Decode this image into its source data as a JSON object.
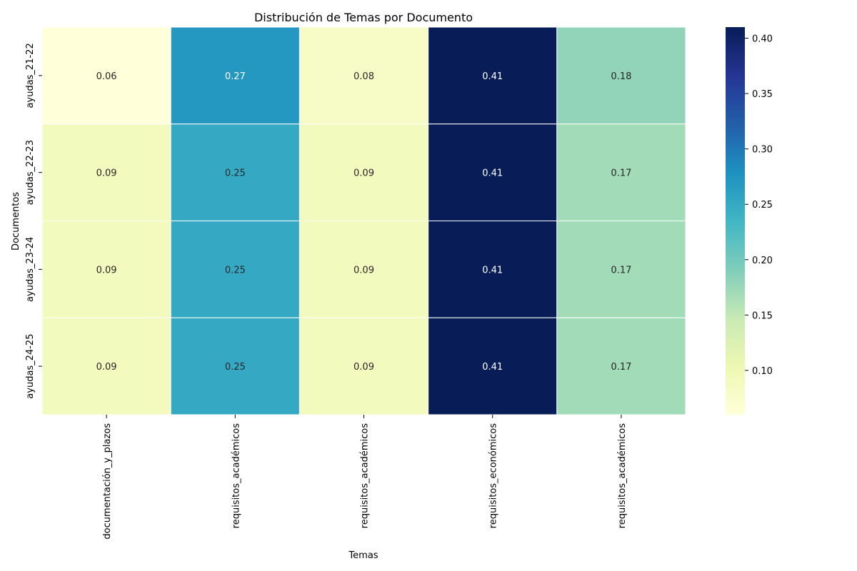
{
  "chart_data": {
    "type": "heatmap",
    "title": "Distribución de Temas por Documento",
    "xlabel": "Temas",
    "ylabel": "Documentos",
    "x_categories": [
      "documentación_y_plazos",
      "requisitos_académicos",
      "requisitos_académicos",
      "requisitos_económicos",
      "requisitos_académicos"
    ],
    "y_categories": [
      "ayudas_21-22",
      "ayudas_22-23",
      "ayudas_23-24",
      "ayudas_24-25"
    ],
    "values": [
      [
        0.06,
        0.27,
        0.08,
        0.41,
        0.18
      ],
      [
        0.09,
        0.25,
        0.09,
        0.41,
        0.17
      ],
      [
        0.09,
        0.25,
        0.09,
        0.41,
        0.17
      ],
      [
        0.09,
        0.25,
        0.09,
        0.41,
        0.17
      ]
    ],
    "colorscale": "YlGnBu",
    "vmin": 0.06,
    "vmax": 0.41,
    "colorbar_ticks": [
      0.1,
      0.15,
      0.2,
      0.25,
      0.3,
      0.35,
      0.4
    ],
    "colorbar_tick_labels": [
      "0.10",
      "0.15",
      "0.20",
      "0.25",
      "0.30",
      "0.35",
      "0.40"
    ],
    "annotations": true,
    "grid": false
  }
}
